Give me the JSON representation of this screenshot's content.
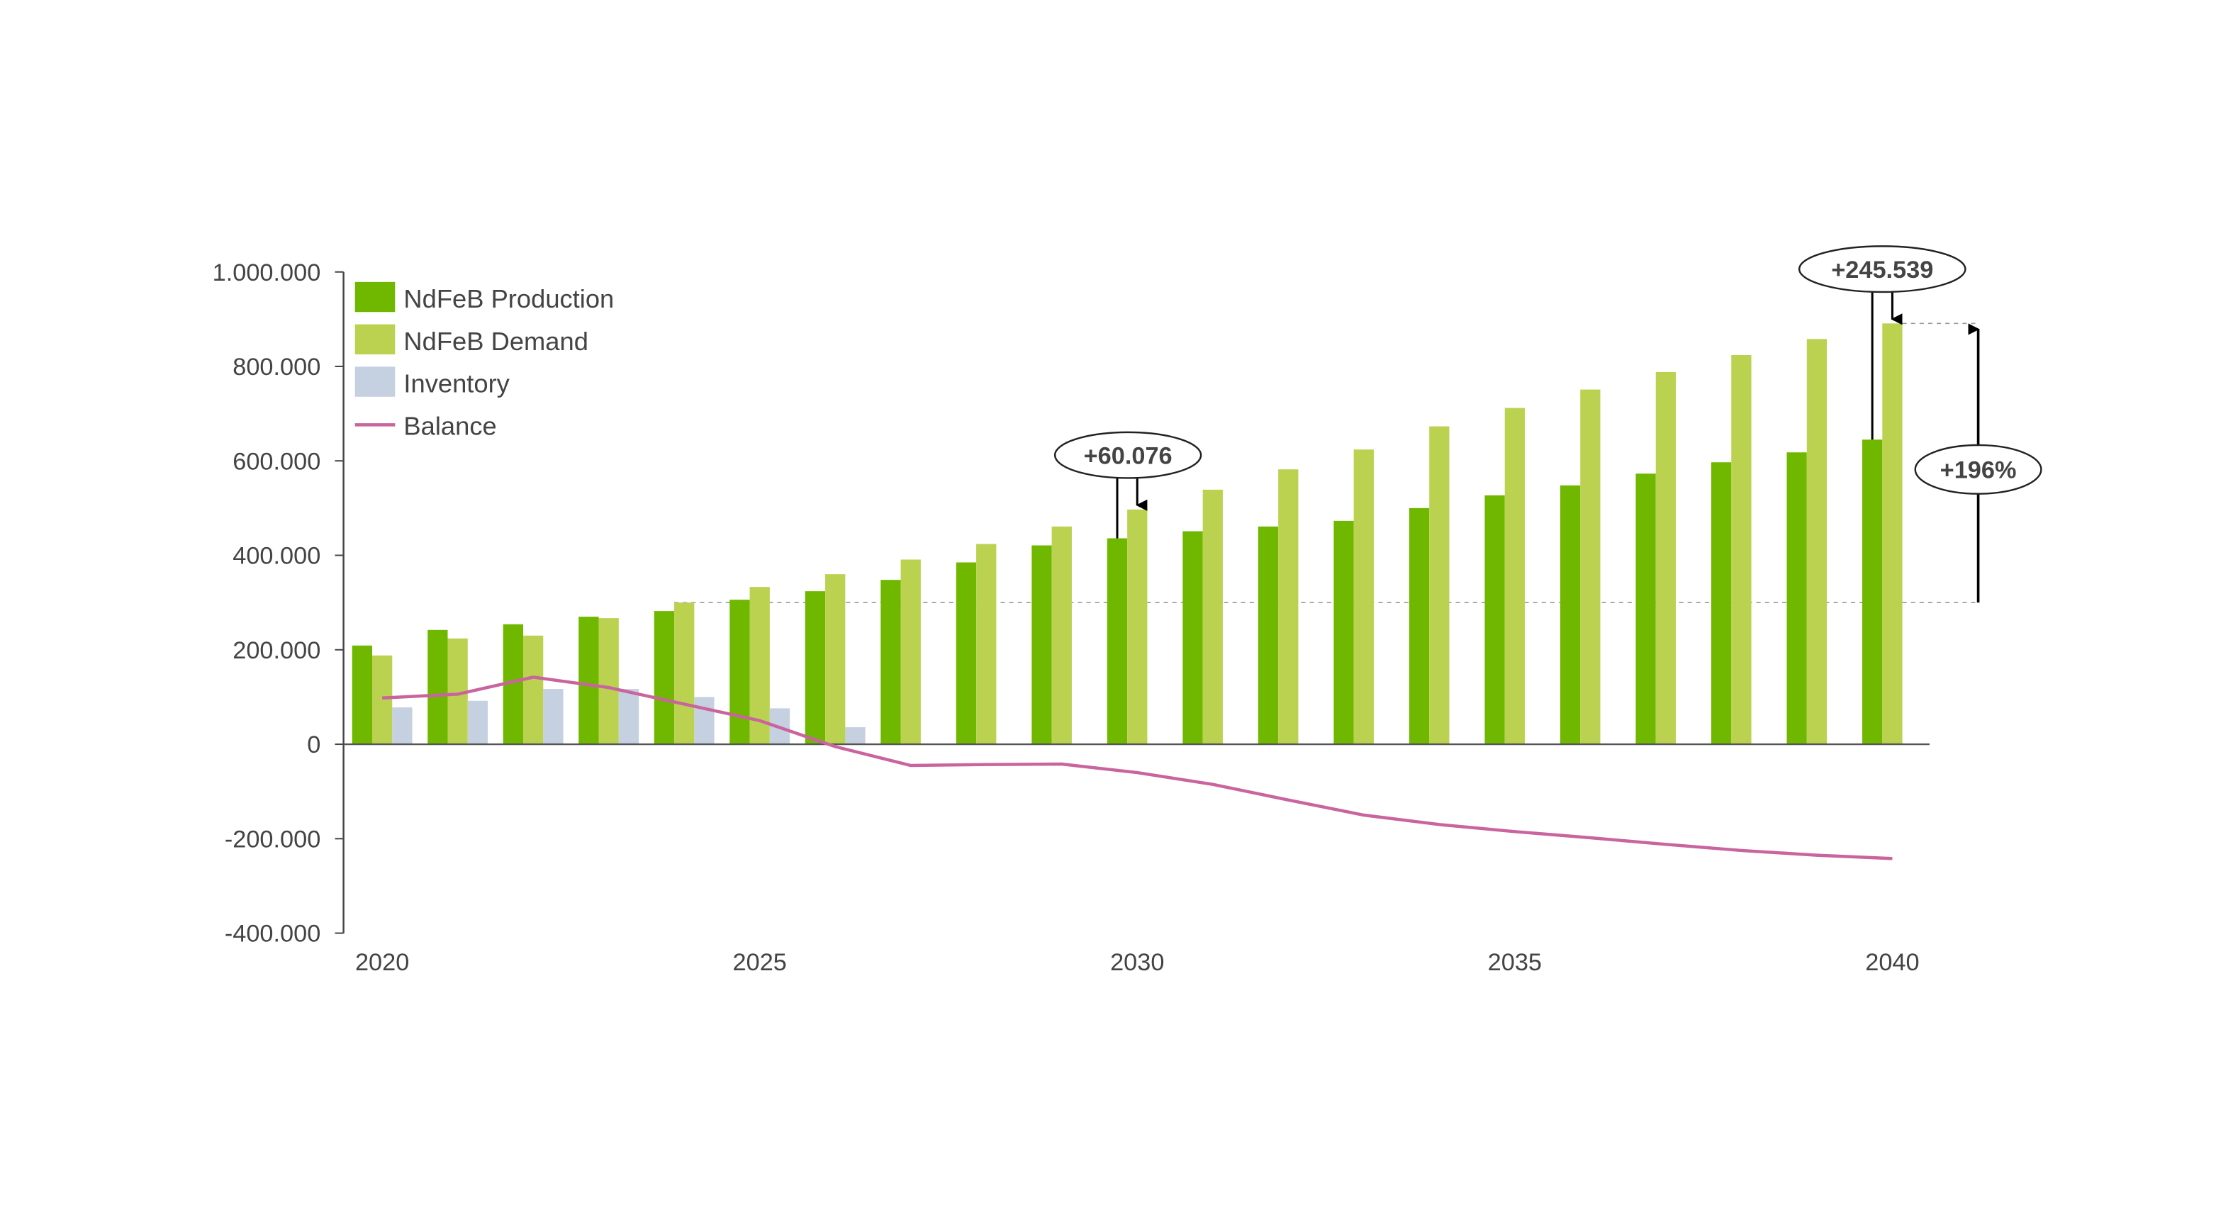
{
  "chart_data": {
    "type": "bar",
    "title": "",
    "xlabel": "",
    "ylabel": "",
    "ylim": [
      -400000,
      1000000
    ],
    "yticks": [
      {
        "value": 1000000,
        "label": "1.000.000"
      },
      {
        "value": 800000,
        "label": "800.000"
      },
      {
        "value": 600000,
        "label": "600.000"
      },
      {
        "value": 400000,
        "label": "400.000"
      },
      {
        "value": 200000,
        "label": "200.000"
      },
      {
        "value": 0,
        "label": "0"
      },
      {
        "value": -200000,
        "label": "-200.000"
      },
      {
        "value": -400000,
        "label": "-400.000"
      }
    ],
    "x": [
      2020,
      2021,
      2022,
      2023,
      2024,
      2025,
      2026,
      2027,
      2028,
      2029,
      2030,
      2031,
      2032,
      2033,
      2034,
      2035,
      2036,
      2037,
      2038,
      2039,
      2040
    ],
    "xtick_labels": [
      {
        "year": 2020,
        "label": "2020"
      },
      {
        "year": 2025,
        "label": "2025"
      },
      {
        "year": 2030,
        "label": "2030"
      },
      {
        "year": 2035,
        "label": "2035"
      },
      {
        "year": 2040,
        "label": "2040"
      }
    ],
    "legend_position": "top-left",
    "series": [
      {
        "name": "NdFeB Production",
        "kind": "bar",
        "color": "#70b800",
        "values": [
          209000,
          242000,
          254000,
          270000,
          282000,
          306000,
          324000,
          348000,
          385000,
          421000,
          436000,
          451000,
          461000,
          473000,
          500000,
          527000,
          548000,
          573000,
          597000,
          618000,
          645000
        ]
      },
      {
        "name": "NdFeB Demand",
        "kind": "bar",
        "color": "#bad24f",
        "values": [
          188000,
          224000,
          230000,
          267000,
          300000,
          333000,
          360000,
          391000,
          424000,
          461000,
          497000,
          539000,
          582000,
          624000,
          673000,
          712000,
          751000,
          788000,
          824000,
          858000,
          891000
        ]
      },
      {
        "name": "Inventory",
        "kind": "bar",
        "color": "#c5d0e1",
        "values": [
          78000,
          92000,
          117000,
          117000,
          100000,
          76000,
          36000,
          null,
          null,
          null,
          null,
          null,
          null,
          null,
          null,
          null,
          null,
          null,
          null,
          null,
          null
        ]
      },
      {
        "name": "Balance",
        "kind": "line",
        "color": "#c9649e",
        "values": [
          98000,
          106000,
          142000,
          120000,
          85000,
          50000,
          -5000,
          -45000,
          -43000,
          -42000,
          -60000,
          -85000,
          -118000,
          -150000,
          -170000,
          -185000,
          -198000,
          -212000,
          -225000,
          -235000,
          -242000
        ]
      }
    ],
    "annotations": [
      {
        "label": "+60.076",
        "year": 2030,
        "note": "demand minus production gap"
      },
      {
        "label": "+245.539",
        "year": 2040,
        "note": "demand minus production gap"
      },
      {
        "label": "+196%",
        "from_value": 300000,
        "to_value": 891000,
        "note": "demand growth from 2024 level to 2040"
      }
    ]
  }
}
